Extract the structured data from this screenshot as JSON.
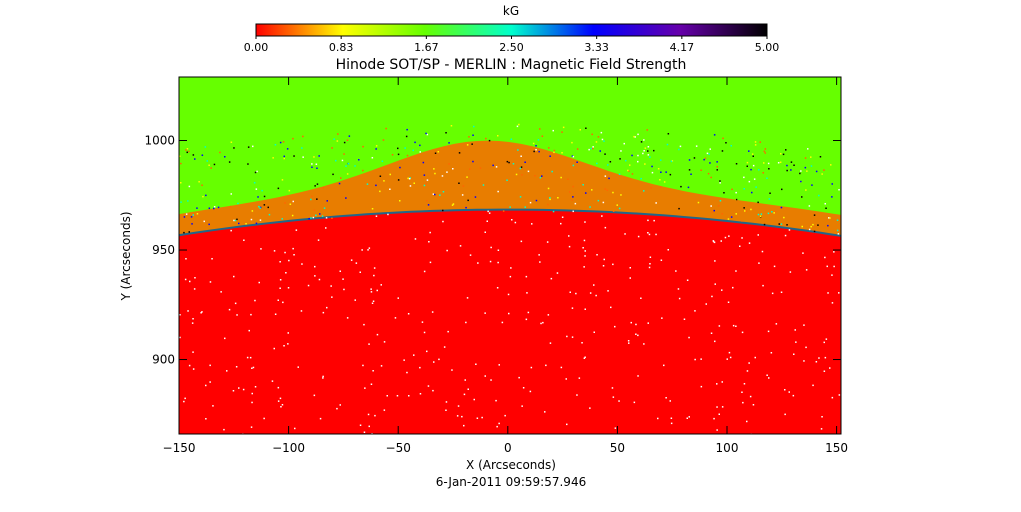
{
  "chart_data": {
    "type": "heatmap",
    "title": "Hinode SOT/SP - MERLIN : Magnetic Field Strength",
    "xlabel": "X (Arcseconds)",
    "ylabel": "Y (Arcseconds)",
    "xlim": [
      -150,
      152
    ],
    "ylim": [
      866,
      1029
    ],
    "x_ticks": [
      -150,
      -100,
      -50,
      0,
      50,
      100,
      150
    ],
    "y_ticks": [
      900,
      950,
      1000
    ],
    "colorbar": {
      "label": "kG",
      "range": [
        0.0,
        5.0
      ],
      "tick_labels": [
        "0.00",
        "0.83",
        "1.67",
        "2.50",
        "3.33",
        "4.17",
        "5.00"
      ],
      "colors": [
        "#ff0000",
        "#ffff00",
        "#66ff00",
        "#00ffcc",
        "#0000ff",
        "#6600aa",
        "#000000"
      ]
    },
    "limb_height_at_center": 968,
    "limb_height_at_edges": 956,
    "above_limb_value_kG": 1.8,
    "disk_value_kG": 0.0,
    "timestamp": "6-Jan-2011 09:59:57.946"
  }
}
